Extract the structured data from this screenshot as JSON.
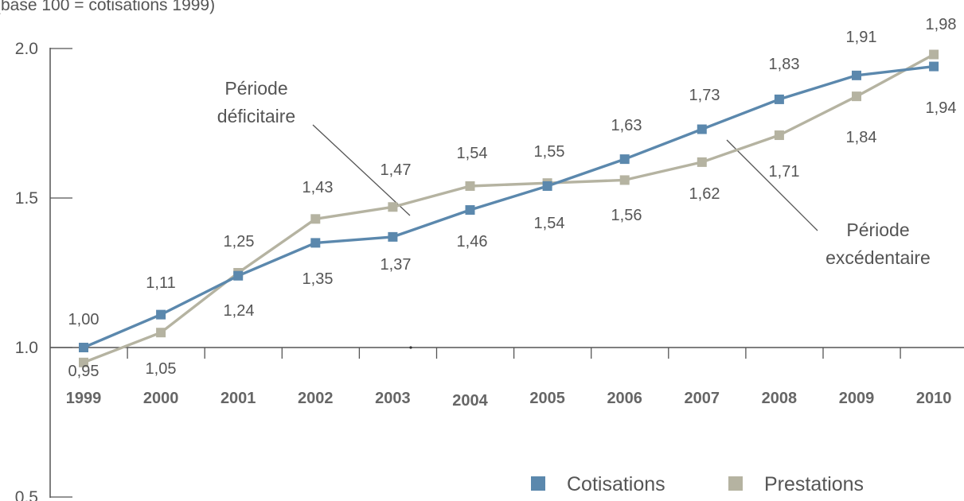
{
  "chart_data": {
    "type": "line",
    "subtitle": "(base 100 = cotisations 1999)",
    "categories": [
      "1999",
      "2000",
      "2001",
      "2002",
      "2003",
      "2004",
      "2005",
      "2006",
      "2007",
      "2008",
      "2009",
      "2010"
    ],
    "y_ticks": [
      "0.5",
      "1.0",
      "1.5",
      "2.0"
    ],
    "ylim": [
      0.5,
      2.0
    ],
    "grid": false,
    "legend_position": "bottom-right",
    "series": [
      {
        "name": "Cotisations",
        "color": "#5b88ad",
        "values": [
          1.0,
          1.11,
          1.24,
          1.35,
          1.37,
          1.46,
          1.54,
          1.63,
          1.73,
          1.83,
          1.91,
          1.94
        ],
        "labels": [
          "1,00",
          "1,11",
          "1,24",
          "1,35",
          "1,37",
          "1,46",
          "1,54",
          "1,63",
          "1,73",
          "1,83",
          "1,91",
          "1,94"
        ]
      },
      {
        "name": "Prestations",
        "color": "#b5b3a1",
        "values": [
          0.95,
          1.05,
          1.25,
          1.43,
          1.47,
          1.54,
          1.55,
          1.56,
          1.62,
          1.71,
          1.84,
          1.98
        ],
        "labels": [
          "0,95",
          "1,05",
          "1,25",
          "1,43",
          "1,47",
          "1,54",
          "1,55",
          "1,56",
          "1,62",
          "1,71",
          "1,84",
          "1,98"
        ]
      }
    ],
    "annotations": [
      {
        "lines": [
          "Période",
          "déficitaire"
        ]
      },
      {
        "lines": [
          "Période",
          "excédentaire"
        ]
      }
    ]
  }
}
